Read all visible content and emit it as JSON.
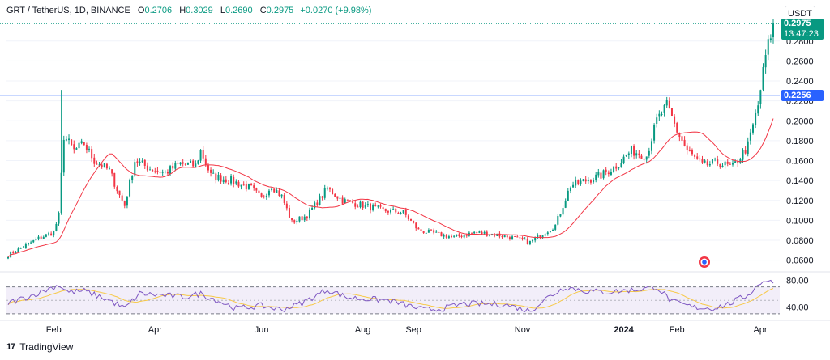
{
  "header": {
    "symbol": "GRT / TetherUS, 1D, BINANCE",
    "o_key": "O",
    "o_val": "0.2706",
    "h_key": "H",
    "h_val": "0.3029",
    "l_key": "L",
    "l_val": "0.2690",
    "c_key": "C",
    "c_val": "0.2975",
    "change": "+0.0270 (+9.98%)"
  },
  "currency_button": "USDT",
  "price_tag": {
    "price": "0.2975",
    "countdown": "13:47:23"
  },
  "level_tag": "0.2256",
  "brand": "TradingView",
  "colors": {
    "up": "#089981",
    "down": "#f23645",
    "ma": "#f23645",
    "rsi": "#7e57c2",
    "rsi_ma": "#f7c948",
    "level": "#2962ff"
  },
  "chart_data": {
    "type": "candlestick",
    "price_axis": {
      "ylim": [
        0.05,
        0.305
      ],
      "ticks": [
        "0.2800",
        "0.2600",
        "0.2400",
        "0.2200",
        "0.2000",
        "0.1800",
        "0.1600",
        "0.1400",
        "0.1200",
        "0.1000",
        "0.0800",
        "0.0600"
      ]
    },
    "rsi_axis": {
      "ylim": [
        25,
        90
      ],
      "ticks": [
        "80.00",
        "40.00"
      ],
      "band": [
        30,
        70
      ]
    },
    "x_axis": {
      "labels": [
        "Feb",
        "Apr",
        "Jun",
        "Aug",
        "Sep",
        "Nov",
        "2024",
        "Feb",
        "Apr"
      ]
    },
    "horizontal_line": 0.2256,
    "last_price": 0.2975,
    "close_anchors": [
      [
        0,
        0.065
      ],
      [
        12,
        0.082
      ],
      [
        18,
        0.088
      ],
      [
        20,
        0.105
      ],
      [
        22,
        0.185
      ],
      [
        26,
        0.17
      ],
      [
        30,
        0.177
      ],
      [
        34,
        0.16
      ],
      [
        40,
        0.15
      ],
      [
        44,
        0.125
      ],
      [
        46,
        0.115
      ],
      [
        50,
        0.16
      ],
      [
        56,
        0.152
      ],
      [
        62,
        0.148
      ],
      [
        68,
        0.157
      ],
      [
        74,
        0.155
      ],
      [
        76,
        0.17
      ],
      [
        80,
        0.145
      ],
      [
        88,
        0.14
      ],
      [
        96,
        0.132
      ],
      [
        100,
        0.122
      ],
      [
        104,
        0.135
      ],
      [
        108,
        0.124
      ],
      [
        112,
        0.098
      ],
      [
        118,
        0.105
      ],
      [
        124,
        0.125
      ],
      [
        126,
        0.132
      ],
      [
        132,
        0.12
      ],
      [
        140,
        0.115
      ],
      [
        148,
        0.11
      ],
      [
        156,
        0.108
      ],
      [
        162,
        0.09
      ],
      [
        168,
        0.087
      ],
      [
        176,
        0.083
      ],
      [
        184,
        0.088
      ],
      [
        192,
        0.086
      ],
      [
        200,
        0.082
      ],
      [
        206,
        0.078
      ],
      [
        210,
        0.085
      ],
      [
        216,
        0.095
      ],
      [
        222,
        0.135
      ],
      [
        228,
        0.14
      ],
      [
        234,
        0.145
      ],
      [
        240,
        0.155
      ],
      [
        246,
        0.17
      ],
      [
        252,
        0.165
      ],
      [
        256,
        0.2
      ],
      [
        260,
        0.215
      ],
      [
        264,
        0.19
      ],
      [
        268,
        0.17
      ],
      [
        274,
        0.155
      ],
      [
        280,
        0.158
      ],
      [
        286,
        0.153
      ],
      [
        292,
        0.175
      ],
      [
        296,
        0.215
      ],
      [
        299,
        0.265
      ],
      [
        302,
        0.2975
      ]
    ],
    "rsi_anchors": [
      [
        0,
        46
      ],
      [
        10,
        58
      ],
      [
        20,
        73
      ],
      [
        24,
        62
      ],
      [
        30,
        64
      ],
      [
        40,
        50
      ],
      [
        46,
        38
      ],
      [
        52,
        60
      ],
      [
        70,
        55
      ],
      [
        76,
        60
      ],
      [
        90,
        38
      ],
      [
        100,
        42
      ],
      [
        108,
        36
      ],
      [
        116,
        46
      ],
      [
        126,
        66
      ],
      [
        134,
        54
      ],
      [
        150,
        50
      ],
      [
        164,
        36
      ],
      [
        172,
        38
      ],
      [
        180,
        45
      ],
      [
        196,
        44
      ],
      [
        206,
        34
      ],
      [
        212,
        52
      ],
      [
        220,
        70
      ],
      [
        228,
        64
      ],
      [
        236,
        62
      ],
      [
        248,
        66
      ],
      [
        256,
        70
      ],
      [
        262,
        48
      ],
      [
        270,
        40
      ],
      [
        278,
        38
      ],
      [
        284,
        44
      ],
      [
        292,
        58
      ],
      [
        298,
        80
      ],
      [
        302,
        76
      ]
    ]
  }
}
